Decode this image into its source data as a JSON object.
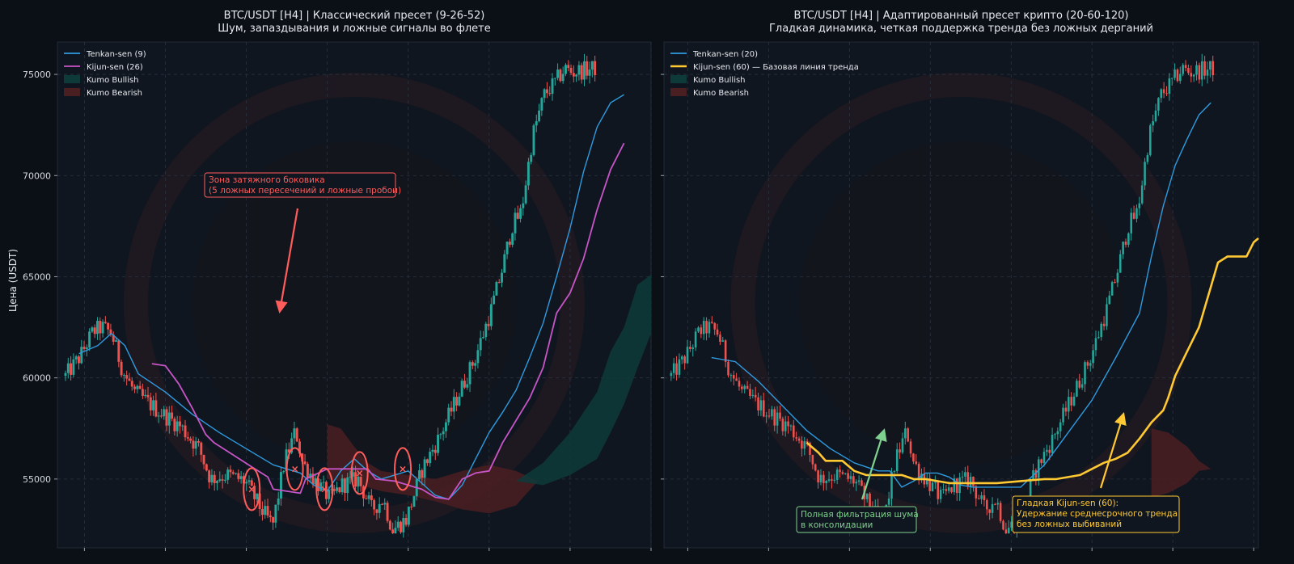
{
  "ylabel": "Цена (USDT)",
  "colors": {
    "background": "#0b0f16",
    "panel": "#10161f",
    "grid": "#2a3340",
    "up": "#26a69a",
    "down": "#ef5350",
    "tenkan": "#2e9be0",
    "kijun_classic": "#c855c8",
    "kijun_crypto": "#ffc933",
    "kumo_bull": "#0e3b3a",
    "kumo_bear": "#4a1f22",
    "annot_red": "#ff5c5c",
    "annot_green": "#7fd18f",
    "annot_yellow": "#ffc933"
  },
  "chart_data": [
    {
      "type": "line",
      "title": "BTC/USDT [H4] | Классический пресет (9-26-52)",
      "subtitle": "Шум, запаздывания и ложные сигналы во флете",
      "ylabel": "Цена (USDT)",
      "ylim": [
        51600,
        76600
      ],
      "yticks": [
        55000,
        60000,
        65000,
        70000,
        75000
      ],
      "ytick_labels": [
        "55000",
        "60000",
        "65000",
        "70000",
        "75000"
      ],
      "x_count": 200,
      "grid": true,
      "legend_position": "top-left",
      "legend": [
        "Tenkan-sen (9)",
        "Kijun-sen (26)",
        "Kumo Bullish",
        "Kumo Bearish"
      ],
      "series": [
        {
          "name": "Tenkan-sen (9)",
          "kind": "tenkan",
          "points": [
            [
              8,
              61200
            ],
            [
              15,
              61600
            ],
            [
              20,
              62200
            ],
            [
              25,
              61600
            ],
            [
              30,
              60200
            ],
            [
              40,
              59300
            ],
            [
              50,
              58200
            ],
            [
              60,
              57300
            ],
            [
              70,
              56500
            ],
            [
              80,
              55700
            ],
            [
              90,
              55300
            ],
            [
              95,
              54700
            ],
            [
              100,
              54400
            ],
            [
              105,
              55400
            ],
            [
              110,
              56000
            ],
            [
              115,
              55400
            ],
            [
              120,
              55000
            ],
            [
              125,
              55200
            ],
            [
              130,
              55400
            ],
            [
              135,
              54800
            ],
            [
              140,
              54200
            ],
            [
              145,
              54000
            ],
            [
              150,
              54700
            ],
            [
              155,
              56000
            ],
            [
              160,
              57300
            ],
            [
              165,
              58300
            ],
            [
              170,
              59400
            ],
            [
              175,
              61000
            ],
            [
              180,
              62700
            ],
            [
              185,
              65000
            ],
            [
              190,
              67400
            ],
            [
              195,
              70200
            ],
            [
              200,
              72400
            ],
            [
              205,
              73600
            ],
            [
              210,
              74000
            ]
          ]
        },
        {
          "name": "Kijun-sen (26)",
          "kind": "kijun",
          "points": [
            [
              35,
              60700
            ],
            [
              40,
              60600
            ],
            [
              45,
              59700
            ],
            [
              50,
              58500
            ],
            [
              55,
              57200
            ],
            [
              58,
              56800
            ],
            [
              65,
              56200
            ],
            [
              72,
              55600
            ],
            [
              78,
              55100
            ],
            [
              80,
              54500
            ],
            [
              85,
              54400
            ],
            [
              90,
              54300
            ],
            [
              92,
              55000
            ],
            [
              100,
              55500
            ],
            [
              110,
              55500
            ],
            [
              115,
              55500
            ],
            [
              118,
              55000
            ],
            [
              125,
              54900
            ],
            [
              135,
              54500
            ],
            [
              140,
              54100
            ],
            [
              145,
              54000
            ],
            [
              150,
              55000
            ],
            [
              155,
              55300
            ],
            [
              160,
              55400
            ],
            [
              165,
              56800
            ],
            [
              170,
              57900
            ],
            [
              175,
              59000
            ],
            [
              180,
              60500
            ],
            [
              185,
              63200
            ],
            [
              190,
              64200
            ],
            [
              195,
              65900
            ],
            [
              200,
              68300
            ],
            [
              205,
              70300
            ],
            [
              210,
              71600
            ]
          ]
        }
      ],
      "kumo": [
        {
          "name": "Kumo Bearish",
          "kind": "bear",
          "upper": [
            [
              100,
              57700
            ],
            [
              105,
              57500
            ],
            [
              110,
              56600
            ],
            [
              115,
              55800
            ],
            [
              120,
              55400
            ],
            [
              130,
              55200
            ],
            [
              140,
              55000
            ],
            [
              150,
              55400
            ],
            [
              160,
              55700
            ],
            [
              170,
              55400
            ],
            [
              178,
              54900
            ]
          ],
          "lower": [
            [
              100,
              55000
            ],
            [
              110,
              54800
            ],
            [
              120,
              54400
            ],
            [
              130,
              54200
            ],
            [
              140,
              53900
            ],
            [
              150,
              53500
            ],
            [
              160,
              53300
            ],
            [
              170,
              53700
            ],
            [
              178,
              54900
            ]
          ]
        },
        {
          "name": "Kumo Bullish",
          "kind": "bull",
          "upper": [
            [
              170,
              54900
            ],
            [
              180,
              55800
            ],
            [
              190,
              57300
            ],
            [
              200,
              59300
            ],
            [
              205,
              61300
            ],
            [
              210,
              62500
            ],
            [
              215,
              64600
            ],
            [
              220,
              65100
            ]
          ],
          "lower": [
            [
              170,
              54900
            ],
            [
              180,
              54700
            ],
            [
              190,
              55200
            ],
            [
              200,
              56000
            ],
            [
              205,
              57300
            ],
            [
              210,
              58700
            ],
            [
              215,
              60500
            ],
            [
              220,
              62200
            ]
          ]
        }
      ],
      "annotations": [
        {
          "text_lines": [
            "Зона затяжного боковика",
            "(5 ложных пересечений и ложные пробои)"
          ],
          "color": "red"
        }
      ],
      "false_crosses": [
        [
          72,
          54500
        ],
        [
          88,
          55500
        ],
        [
          99,
          54500
        ],
        [
          112,
          55300
        ],
        [
          128,
          55500
        ]
      ]
    },
    {
      "type": "line",
      "title": "BTC/USDT [H4] | Адаптированный пресет крипто (20-60-120)",
      "subtitle": "Гладкая динамика, четкая поддержка тренда без ложных дерганий",
      "ylim": [
        51600,
        76600
      ],
      "yticks": [
        55000,
        60000,
        65000,
        70000,
        75000
      ],
      "x_count": 200,
      "grid": true,
      "legend_position": "top-left",
      "legend": [
        "Tenkan-sen (20)",
        "Kijun-sen (60) — Базовая линия тренда",
        "Kumo Bullish",
        "Kumo Bearish"
      ],
      "series": [
        {
          "name": "Tenkan-sen (20)",
          "kind": "tenkan",
          "points": [
            [
              20,
              61000
            ],
            [
              30,
              60800
            ],
            [
              40,
              59800
            ],
            [
              50,
              58600
            ],
            [
              60,
              57400
            ],
            [
              70,
              56500
            ],
            [
              80,
              55800
            ],
            [
              90,
              55400
            ],
            [
              95,
              55400
            ],
            [
              100,
              54600
            ],
            [
              105,
              54900
            ],
            [
              110,
              55300
            ],
            [
              115,
              55300
            ],
            [
              120,
              55100
            ],
            [
              125,
              54700
            ],
            [
              130,
              54600
            ],
            [
              140,
              54600
            ],
            [
              150,
              54600
            ],
            [
              160,
              55700
            ],
            [
              170,
              57300
            ],
            [
              180,
              58900
            ],
            [
              190,
              61000
            ],
            [
              200,
              63200
            ],
            [
              205,
              66000
            ],
            [
              210,
              68500
            ],
            [
              215,
              70500
            ],
            [
              220,
              71800
            ],
            [
              225,
              73000
            ],
            [
              230,
              73600
            ]
          ]
        },
        {
          "name": "Kijun-sen (60) — Базовая линия тренда",
          "kind": "kijun",
          "points": [
            [
              60,
              56800
            ],
            [
              65,
              56300
            ],
            [
              68,
              55900
            ],
            [
              75,
              55900
            ],
            [
              78,
              55600
            ],
            [
              80,
              55400
            ],
            [
              85,
              55200
            ],
            [
              90,
              55200
            ],
            [
              95,
              55200
            ],
            [
              100,
              55200
            ],
            [
              105,
              55000
            ],
            [
              110,
              55000
            ],
            [
              120,
              54800
            ],
            [
              130,
              54800
            ],
            [
              140,
              54800
            ],
            [
              150,
              54900
            ],
            [
              160,
              55000
            ],
            [
              165,
              55000
            ],
            [
              170,
              55100
            ],
            [
              175,
              55200
            ],
            [
              180,
              55500
            ],
            [
              185,
              55800
            ],
            [
              190,
              56000
            ],
            [
              195,
              56300
            ],
            [
              200,
              57000
            ],
            [
              205,
              57800
            ],
            [
              210,
              58400
            ],
            [
              212,
              59000
            ],
            [
              215,
              60100
            ],
            [
              220,
              61300
            ],
            [
              225,
              62500
            ],
            [
              230,
              64500
            ],
            [
              233,
              65700
            ],
            [
              237,
              66000
            ],
            [
              240,
              66000
            ],
            [
              245,
              66000
            ],
            [
              248,
              66700
            ],
            [
              250,
              66900
            ]
          ]
        }
      ],
      "kumo": [
        {
          "name": "Kumo Bearish",
          "kind": "bear",
          "upper": [
            [
              205,
              57500
            ],
            [
              212,
              57300
            ],
            [
              220,
              56600
            ],
            [
              225,
              55900
            ],
            [
              230,
              55500
            ]
          ],
          "lower": [
            [
              205,
              54100
            ],
            [
              212,
              54300
            ],
            [
              220,
              54800
            ],
            [
              225,
              55400
            ],
            [
              230,
              55500
            ]
          ]
        }
      ],
      "annotations": [
        {
          "text_lines": [
            "Полная фильтрация шума",
            "в консолидации"
          ],
          "color": "green"
        },
        {
          "text_lines": [
            "Гладкая Kijun-sen (60):",
            "Удержание среднесрочного тренда",
            "без ложных выбиваний"
          ],
          "color": "yellow"
        }
      ]
    }
  ]
}
